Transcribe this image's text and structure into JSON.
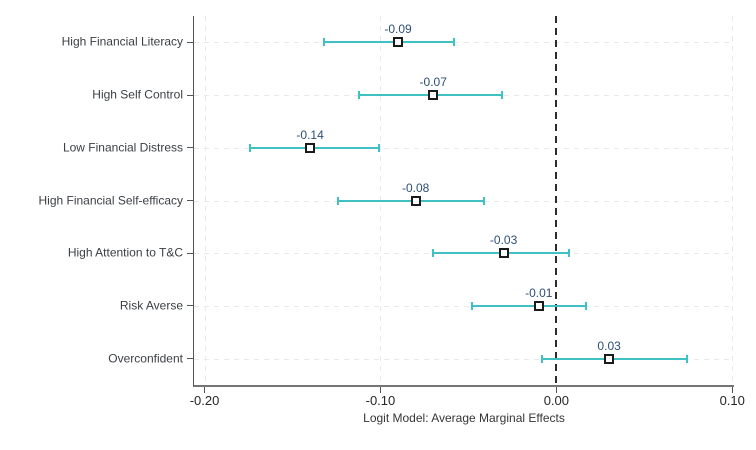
{
  "chart_data": {
    "type": "scatter",
    "subtype": "coefficient-plot-with-confidence-intervals",
    "title": "",
    "xlabel": "Logit Model: Average Marginal Effects",
    "ylabel": "",
    "xlim": [
      -0.206,
      0.101
    ],
    "ref_line": 0,
    "grid": true,
    "legend": "none",
    "x_ticks": [
      {
        "value": -0.2,
        "label": "-0.20"
      },
      {
        "value": -0.1,
        "label": "-0.10"
      },
      {
        "value": 0.0,
        "label": "0.00"
      },
      {
        "value": 0.1,
        "label": "0.10"
      }
    ],
    "points": [
      {
        "category": "High Financial Literacy",
        "value": -0.09,
        "label": "-0.09",
        "ci": [
          -0.132,
          -0.058
        ]
      },
      {
        "category": "High Self Control",
        "value": -0.07,
        "label": "-0.07",
        "ci": [
          -0.112,
          -0.031
        ]
      },
      {
        "category": "Low Financial Distress",
        "value": -0.14,
        "label": "-0.14",
        "ci": [
          -0.174,
          -0.101
        ]
      },
      {
        "category": "High Financial Self-efficacy",
        "value": -0.08,
        "label": "-0.08",
        "ci": [
          -0.124,
          -0.041
        ]
      },
      {
        "category": "High Attention to T&C",
        "value": -0.03,
        "label": "-0.03",
        "ci": [
          -0.07,
          0.007
        ]
      },
      {
        "category": "Risk Averse",
        "value": -0.01,
        "label": "-0.01",
        "ci": [
          -0.048,
          0.017
        ]
      },
      {
        "category": "Overconfident",
        "value": 0.03,
        "label": "0.03",
        "ci": [
          -0.008,
          0.074
        ]
      }
    ],
    "colors": {
      "ci_bar": "#3fc1c4",
      "marker_fill": "#ffffff",
      "marker_border": "#1a1a1a",
      "value_label": "#2d4f74",
      "reference_line": "#2b2b2b",
      "gridline": "#e9e9e9",
      "axis_line": "#555555",
      "text": "#363636"
    }
  }
}
